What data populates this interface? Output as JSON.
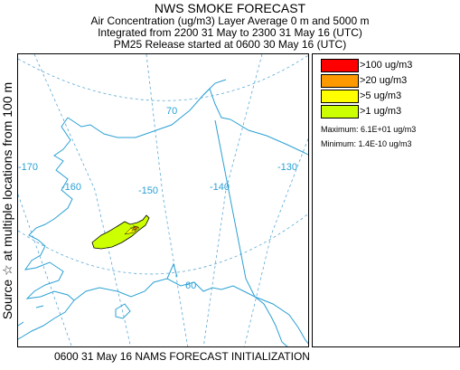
{
  "title": {
    "line1": "NWS SMOKE FORECAST",
    "line2": "Air Concentration (ug/m3) Layer Average    0 m and  5000 m",
    "line3": "Integrated from 2200 31 May to 2300 31 May 16 (UTC)",
    "line4": "PM25 Release started at 0600 30 May 16 (UTC)"
  },
  "side_label": "Source ☆ at multiple locations from 100 m",
  "map": {
    "grid_labels": [
      "-170",
      "-160",
      "-150",
      "-140",
      "-130",
      "70",
      "60"
    ],
    "colors": {
      "coastline": "#2aa0d4",
      "grid": "#5aa8d6",
      "boundary": "#2aa0d4"
    }
  },
  "legend": {
    "items": [
      {
        "label": ">100 ug/m3",
        "color": "#ff0000"
      },
      {
        "label": ">20 ug/m3",
        "color": "#ff9900"
      },
      {
        "label": ">5 ug/m3",
        "color": "#ffff00"
      },
      {
        "label": ">1 ug/m3",
        "color": "#ccff00"
      }
    ],
    "maximum": "Maximum: 6.1E+01 ug/m3",
    "minimum": "Minimum: 1.4E-10 ug/m3"
  },
  "footer": "0600 31 May 16 NAMS FORECAST INITIALIZATION"
}
